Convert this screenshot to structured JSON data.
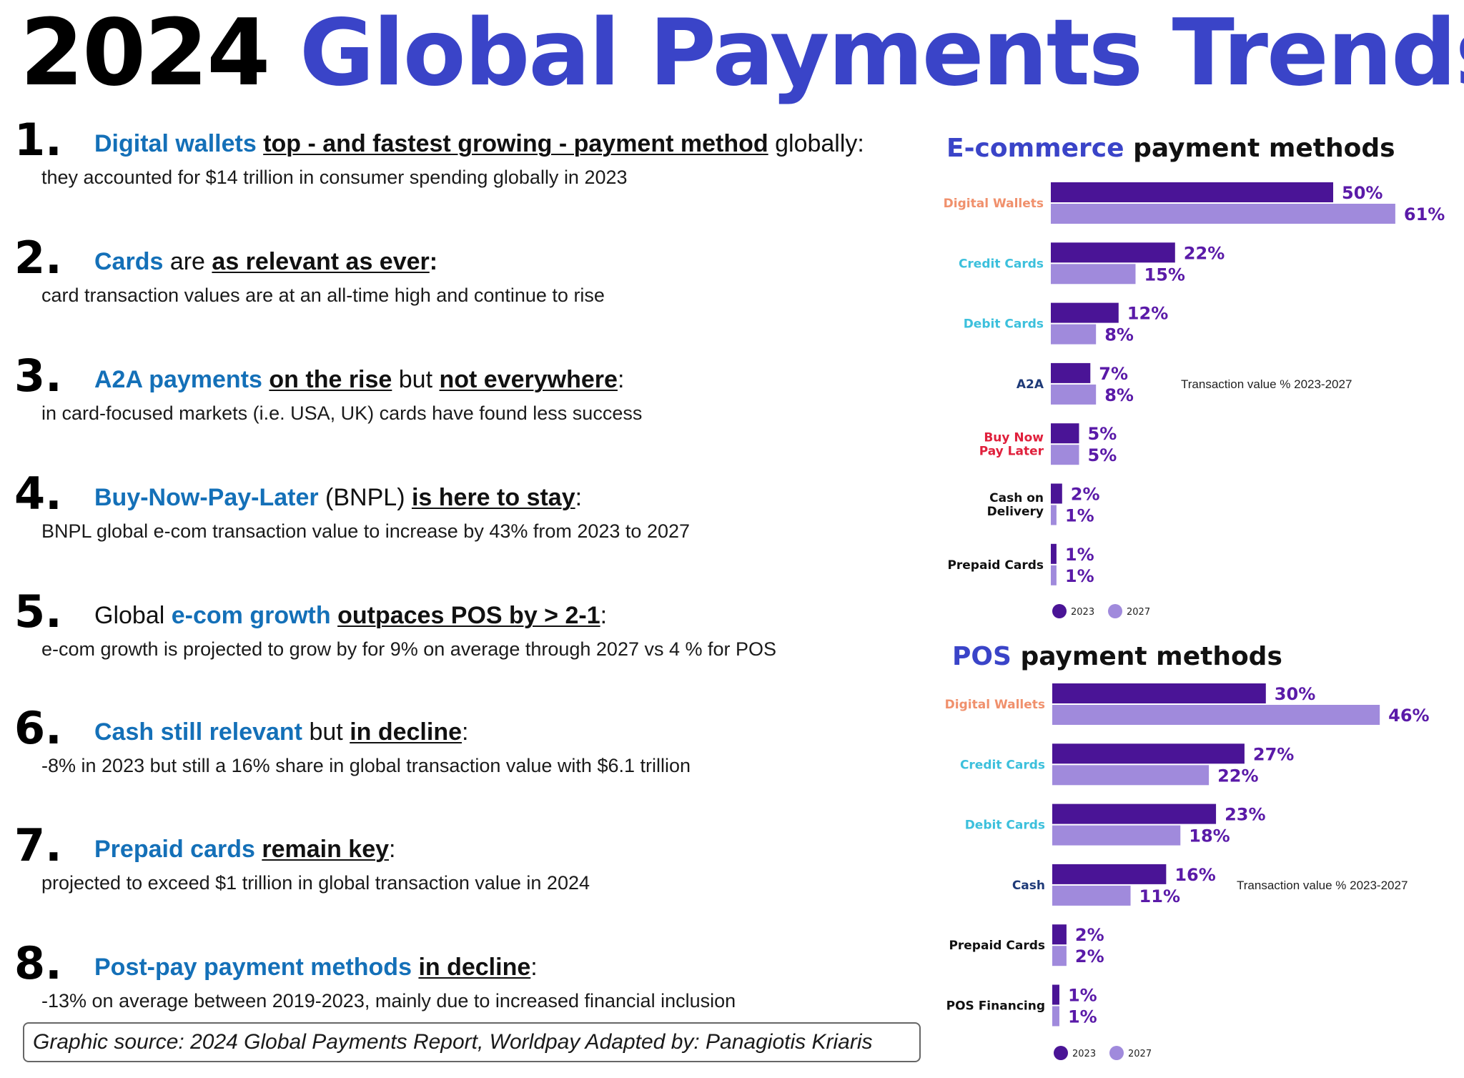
{
  "title": {
    "year": "2024",
    "text": "Global Payments Trends"
  },
  "colors": {
    "accent": "#3a44c8",
    "highlight": "#1470b8",
    "bar_2023": "#4a1496",
    "bar_2027": "#a08adc"
  },
  "items": [
    {
      "num": "1.",
      "parts": [
        {
          "t": "Digital wallets",
          "s": "b"
        },
        {
          "t": " "
        },
        {
          "t": "top - and fastest growing - payment method",
          "s": "u"
        },
        {
          "t": " globally:"
        }
      ],
      "sub": "they accounted for $14 trillion in consumer spending globally in 2023"
    },
    {
      "num": "2.",
      "parts": [
        {
          "t": "Cards",
          "s": "b"
        },
        {
          "t": " are "
        },
        {
          "t": "as relevant as ever",
          "s": "u"
        },
        {
          "t": ":",
          "s": "bold"
        }
      ],
      "sub": "card transaction values are at an all-time high and continue to rise"
    },
    {
      "num": "3.",
      "parts": [
        {
          "t": "A2A payments",
          "s": "b"
        },
        {
          "t": " "
        },
        {
          "t": "on the rise",
          "s": "u"
        },
        {
          "t": " but "
        },
        {
          "t": "not everywhere",
          "s": "u"
        },
        {
          "t": ":"
        }
      ],
      "sub": "in card-focused markets (i.e. USA, UK) cards have found less success"
    },
    {
      "num": "4.",
      "parts": [
        {
          "t": "Buy-Now-Pay-Later",
          "s": "b"
        },
        {
          "t": " (BNPL) "
        },
        {
          "t": "is here to stay",
          "s": "u"
        },
        {
          "t": ":"
        }
      ],
      "sub": "BNPL global e-com transaction value to increase by 43% from 2023 to 2027"
    },
    {
      "num": "5.",
      "parts": [
        {
          "t": "Global "
        },
        {
          "t": "e-com growth",
          "s": "b"
        },
        {
          "t": " "
        },
        {
          "t": "outpaces POS by > 2-1",
          "s": "u"
        },
        {
          "t": ":"
        }
      ],
      "sub": "e-com growth is projected to grow by for 9% on average through 2027 vs 4 % for POS"
    },
    {
      "num": "6.",
      "parts": [
        {
          "t": "Cash still relevant",
          "s": "b"
        },
        {
          "t": " but "
        },
        {
          "t": "in decline",
          "s": "u"
        },
        {
          "t": ":"
        }
      ],
      "sub": "-8% in 2023 but still a 16% share in global transaction value with $6.1 trillion"
    },
    {
      "num": "7.",
      "parts": [
        {
          "t": "Prepaid cards",
          "s": "b"
        },
        {
          "t": " "
        },
        {
          "t": "remain key",
          "s": "u"
        },
        {
          "t": ":"
        }
      ],
      "sub": "projected to exceed $1 trillion in global transaction value in 2024"
    },
    {
      "num": "8.",
      "parts": [
        {
          "t": "Post-pay payment methods",
          "s": "b"
        },
        {
          "t": " "
        },
        {
          "t": "in decline",
          "s": "u"
        },
        {
          "t": ":"
        }
      ],
      "sub": "-13% on average between 2019-2023, mainly due to increased financial inclusion"
    }
  ],
  "source": "Graphic source: 2024 Global Payments Report, Worldpay   Adapted by: Panagiotis Kriaris",
  "chart_data": [
    {
      "type": "bar",
      "orientation": "horizontal",
      "title_highlight": "E-commerce",
      "title_rest": " payment methods",
      "note": "Transaction value % 2023-2027",
      "categories": [
        {
          "label": [
            "Digital Wallets"
          ],
          "color": "#f0906c"
        },
        {
          "label": [
            "Credit Cards"
          ],
          "color": "#3cc0dc"
        },
        {
          "label": [
            "Debit Cards"
          ],
          "color": "#3cc0dc"
        },
        {
          "label": [
            "A2A"
          ],
          "color": "#1e3a78"
        },
        {
          "label": [
            "Buy Now",
            "Pay Later"
          ],
          "color": "#e0203c"
        },
        {
          "label": [
            "Cash on",
            "Delivery"
          ],
          "color": "#111111"
        },
        {
          "label": [
            "Prepaid Cards"
          ],
          "color": "#111111"
        }
      ],
      "series": [
        {
          "name": "2023",
          "values": [
            50,
            22,
            12,
            7,
            5,
            2,
            1
          ],
          "color": "#4a1496"
        },
        {
          "name": "2027",
          "values": [
            61,
            15,
            8,
            8,
            5,
            1,
            1
          ],
          "color": "#a08adc"
        }
      ],
      "value_suffix": "%",
      "legend_position": "bottom-left"
    },
    {
      "type": "bar",
      "orientation": "horizontal",
      "title_highlight": "POS",
      "title_rest": " payment methods",
      "note": "Transaction value % 2023-2027",
      "categories": [
        {
          "label": [
            "Digital Wallets"
          ],
          "color": "#f0906c"
        },
        {
          "label": [
            "Credit Cards"
          ],
          "color": "#3cc0dc"
        },
        {
          "label": [
            "Debit Cards"
          ],
          "color": "#3cc0dc"
        },
        {
          "label": [
            "Cash"
          ],
          "color": "#1e3a78"
        },
        {
          "label": [
            "Prepaid Cards"
          ],
          "color": "#111111"
        },
        {
          "label": [
            "POS Financing"
          ],
          "color": "#111111"
        }
      ],
      "series": [
        {
          "name": "2023",
          "values": [
            30,
            27,
            23,
            16,
            2,
            1
          ],
          "color": "#4a1496"
        },
        {
          "name": "2027",
          "values": [
            46,
            22,
            18,
            11,
            2,
            1
          ],
          "color": "#a08adc"
        }
      ],
      "value_suffix": "%",
      "legend_position": "bottom-left"
    }
  ]
}
